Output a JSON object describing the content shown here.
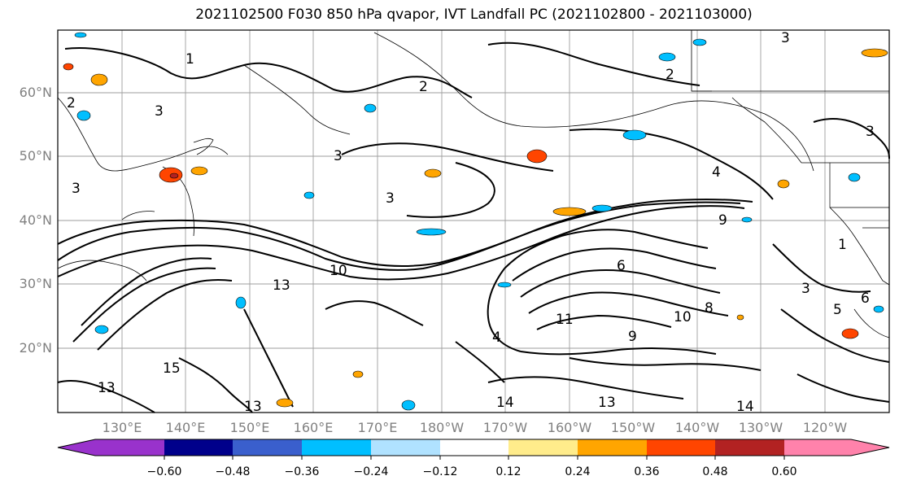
{
  "title": "2021102500 F030 850 hPa qvapor, IVT Landfall PC (2021102800 - 2021103000)",
  "map": {
    "lat_labels": [
      "60°N",
      "50°N",
      "40°N",
      "30°N",
      "20°N"
    ],
    "lon_labels": [
      "130°E",
      "140°E",
      "150°E",
      "160°E",
      "170°E",
      "180°W",
      "170°W",
      "160°W",
      "150°W",
      "140°W",
      "130°W",
      "120°W"
    ],
    "contour_labels": [
      "1",
      "2",
      "3",
      "3",
      "3",
      "3",
      "2",
      "3",
      "4",
      "9",
      "10",
      "10",
      "13",
      "15",
      "13",
      "13",
      "14",
      "13",
      "11",
      "8",
      "9",
      "14",
      "6",
      "3",
      "5",
      "6",
      "1",
      "3",
      "2",
      "4"
    ]
  },
  "colorbar": {
    "colors": [
      "#9932cc",
      "#00008b",
      "#3a5fcd",
      "#00bfff",
      "#b0e2ff",
      "#ffffff",
      "#ffec8b",
      "#ffa500",
      "#ff4500",
      "#b22222",
      "#ff82ab"
    ],
    "ticks": [
      "−0.60",
      "−0.48",
      "−0.36",
      "−0.24",
      "−0.12",
      "0.12",
      "0.24",
      "0.36",
      "0.48",
      "0.60"
    ]
  }
}
